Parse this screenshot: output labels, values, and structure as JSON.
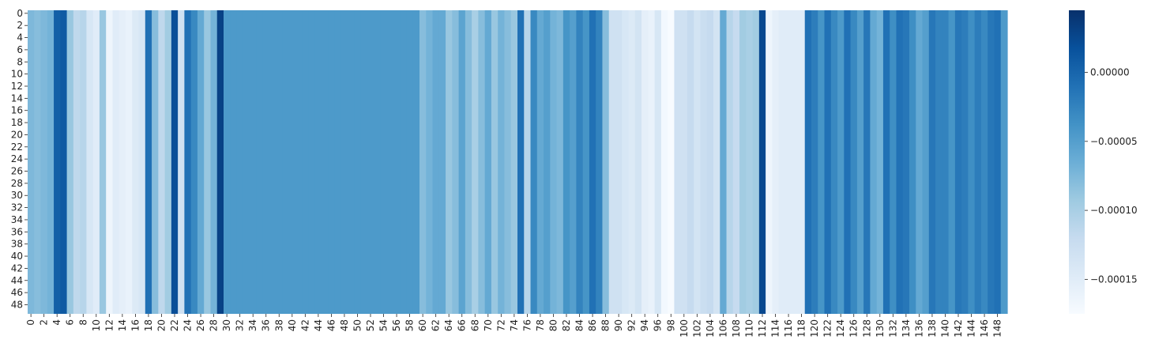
{
  "chart_data": {
    "type": "heatmap",
    "title": "",
    "xlabel": "",
    "ylabel": "",
    "n_rows": 50,
    "n_cols": 150,
    "x_tick_labels": [
      "0",
      "2",
      "4",
      "6",
      "8",
      "10",
      "12",
      "14",
      "16",
      "18",
      "20",
      "22",
      "24",
      "26",
      "28",
      "30",
      "32",
      "34",
      "36",
      "38",
      "40",
      "42",
      "44",
      "46",
      "48",
      "50",
      "52",
      "54",
      "56",
      "58",
      "60",
      "62",
      "64",
      "66",
      "68",
      "70",
      "72",
      "74",
      "76",
      "78",
      "80",
      "82",
      "84",
      "86",
      "88",
      "90",
      "92",
      "94",
      "96",
      "98",
      "100",
      "102",
      "104",
      "106",
      "108",
      "110",
      "112",
      "114",
      "116",
      "118",
      "120",
      "122",
      "124",
      "126",
      "128",
      "130",
      "132",
      "134",
      "136",
      "138",
      "140",
      "142",
      "144",
      "146",
      "148"
    ],
    "y_tick_labels": [
      "0",
      "2",
      "4",
      "6",
      "8",
      "10",
      "12",
      "14",
      "16",
      "18",
      "20",
      "22",
      "24",
      "26",
      "28",
      "30",
      "32",
      "34",
      "36",
      "38",
      "40",
      "42",
      "44",
      "46",
      "48"
    ],
    "colormap": "Blues",
    "vmin": -0.000175,
    "vmax": 4.5e-05,
    "colorbar_ticks": [
      0.0,
      -5e-05,
      -0.0001,
      -0.00015
    ],
    "colorbar_tick_labels": [
      "0.00000",
      "−0.00005",
      "−0.00010",
      "−0.00015"
    ],
    "column_values": [
      -7.5e-05,
      -8e-05,
      -7.5e-05,
      -7e-05,
      5e-06,
      1e-05,
      -9e-05,
      -0.000115,
      -0.00011,
      -0.00014,
      -0.00015,
      -9e-05,
      -0.000165,
      -0.00015,
      -0.000155,
      -0.00016,
      -0.000145,
      -0.00014,
      -1e-05,
      -8e-05,
      -0.000115,
      -9.5e-05,
      2e-05,
      -0.00013,
      -1e-05,
      -3e-05,
      -6e-05,
      -9e-05,
      -7e-05,
      3e-05,
      -4.5e-05,
      -4.5e-05,
      -4.5e-05,
      -4.5e-05,
      -4.5e-05,
      -4.5e-05,
      -4.5e-05,
      -4.5e-05,
      -4.5e-05,
      -4.5e-05,
      -4.5e-05,
      -4.5e-05,
      -4.5e-05,
      -4.5e-05,
      -4.5e-05,
      -4.5e-05,
      -4.5e-05,
      -4.5e-05,
      -4.5e-05,
      -4.5e-05,
      -4.5e-05,
      -4.5e-05,
      -4.5e-05,
      -4.5e-05,
      -4.5e-05,
      -4.5e-05,
      -4.5e-05,
      -4.5e-05,
      -4.5e-05,
      -4.5e-05,
      -8e-05,
      -7e-05,
      -6e-05,
      -6e-05,
      -9e-05,
      -8e-05,
      -5.5e-05,
      -8e-05,
      -0.0001,
      -8e-05,
      -6e-05,
      -9e-05,
      -7e-05,
      -8e-05,
      -9e-05,
      -1e-05,
      -0.00011,
      -3e-05,
      -6e-05,
      -5e-05,
      -7e-05,
      -7.5e-05,
      -4e-05,
      -5e-05,
      -2.5e-05,
      -4e-05,
      -1e-05,
      -2.5e-05,
      -8e-05,
      -0.00013,
      -0.00013,
      -0.00014,
      -0.000145,
      -0.000135,
      -0.000155,
      -0.00016,
      -0.00014,
      -0.00017,
      -0.000175,
      -0.00013,
      -0.00013,
      -0.00012,
      -0.000135,
      -0.000125,
      -0.00012,
      -0.000135,
      -6e-05,
      -0.00011,
      -0.00012,
      -9.5e-05,
      -0.0001,
      -9.5e-05,
      2.5e-05,
      -0.000165,
      -0.000155,
      -0.00015,
      -0.00015,
      -0.00015,
      -0.00015,
      -1e-05,
      -2e-05,
      -4e-05,
      -1e-05,
      -3e-05,
      -4.5e-05,
      -1e-05,
      -3e-05,
      -5e-05,
      -1.5e-05,
      -6e-05,
      -7e-05,
      -1e-05,
      -3.5e-05,
      -1e-05,
      -1.5e-05,
      -3.5e-05,
      -6e-05,
      -5e-05,
      -1.5e-05,
      -2.5e-05,
      -2.5e-05,
      -4e-05,
      -1.5e-05,
      -2e-05,
      -3.5e-05,
      -2e-05,
      -3e-05,
      -1.5e-05,
      -1e-05,
      -4.5e-05
    ]
  }
}
